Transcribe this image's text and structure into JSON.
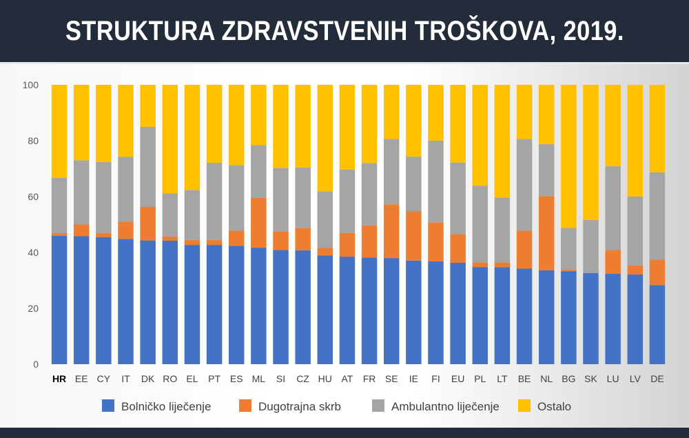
{
  "header": {
    "title": "STRUKTURA ZDRAVSTVENIH TROŠKOVA, 2019."
  },
  "chart_data": {
    "type": "bar",
    "stacked": true,
    "categories": [
      "HR",
      "EE",
      "CY",
      "IT",
      "DK",
      "RO",
      "EL",
      "PT",
      "ES",
      "ML",
      "SI",
      "CZ",
      "HU",
      "AT",
      "FR",
      "SE",
      "IE",
      "FI",
      "EU",
      "PL",
      "LT",
      "BE",
      "NL",
      "BG",
      "SK",
      "LU",
      "LV",
      "DE"
    ],
    "highlight_category": "HR",
    "series": [
      {
        "name": "Bolničko liječenje",
        "color": "#4472c4",
        "values": [
          46,
          45.8,
          45.5,
          44.8,
          44.3,
          44.2,
          42.7,
          42.7,
          42.4,
          41.7,
          40.9,
          40.8,
          38.9,
          38.5,
          38.2,
          38,
          37.1,
          36.8,
          36.3,
          34.8,
          34.7,
          34.2,
          33.6,
          33.3,
          32.6,
          32.4,
          32.1,
          28.3
        ]
      },
      {
        "name": "Dugotrajna skrb",
        "color": "#ed7d31",
        "values": [
          1,
          4.2,
          1.5,
          6.2,
          12,
          1.5,
          1.8,
          1.8,
          5.4,
          17.8,
          6.6,
          8,
          2.7,
          8.5,
          11.5,
          19.2,
          17.6,
          14,
          10.3,
          1.6,
          1.7,
          13.6,
          26.6,
          0.5,
          0,
          8.5,
          3.2,
          9.1
        ]
      },
      {
        "name": "Ambulantno liječenje",
        "color": "#a5a5a5",
        "values": [
          19.7,
          23,
          25.4,
          23.2,
          28.7,
          15.5,
          17.9,
          27.6,
          23.5,
          18.9,
          22.8,
          21.6,
          20.3,
          22.7,
          22.3,
          23.4,
          19.6,
          29.2,
          25.6,
          27.5,
          23.2,
          32.8,
          18.6,
          15,
          19,
          30,
          24.7,
          31.3
        ]
      },
      {
        "name": "Ostalo",
        "color": "#ffc000",
        "values": [
          33.3,
          27,
          27.6,
          25.8,
          15,
          38.8,
          37.6,
          27.9,
          28.7,
          21.6,
          29.7,
          29.6,
          38.1,
          30.3,
          28,
          19.4,
          25.7,
          20,
          27.8,
          36.1,
          40.4,
          19.4,
          21.2,
          51.2,
          48.4,
          29.1,
          40,
          31.3
        ]
      }
    ],
    "ylim": [
      0,
      100
    ],
    "yticks": [
      0,
      20,
      40,
      60,
      80,
      100
    ],
    "grid": false,
    "legend_position": "bottom"
  }
}
